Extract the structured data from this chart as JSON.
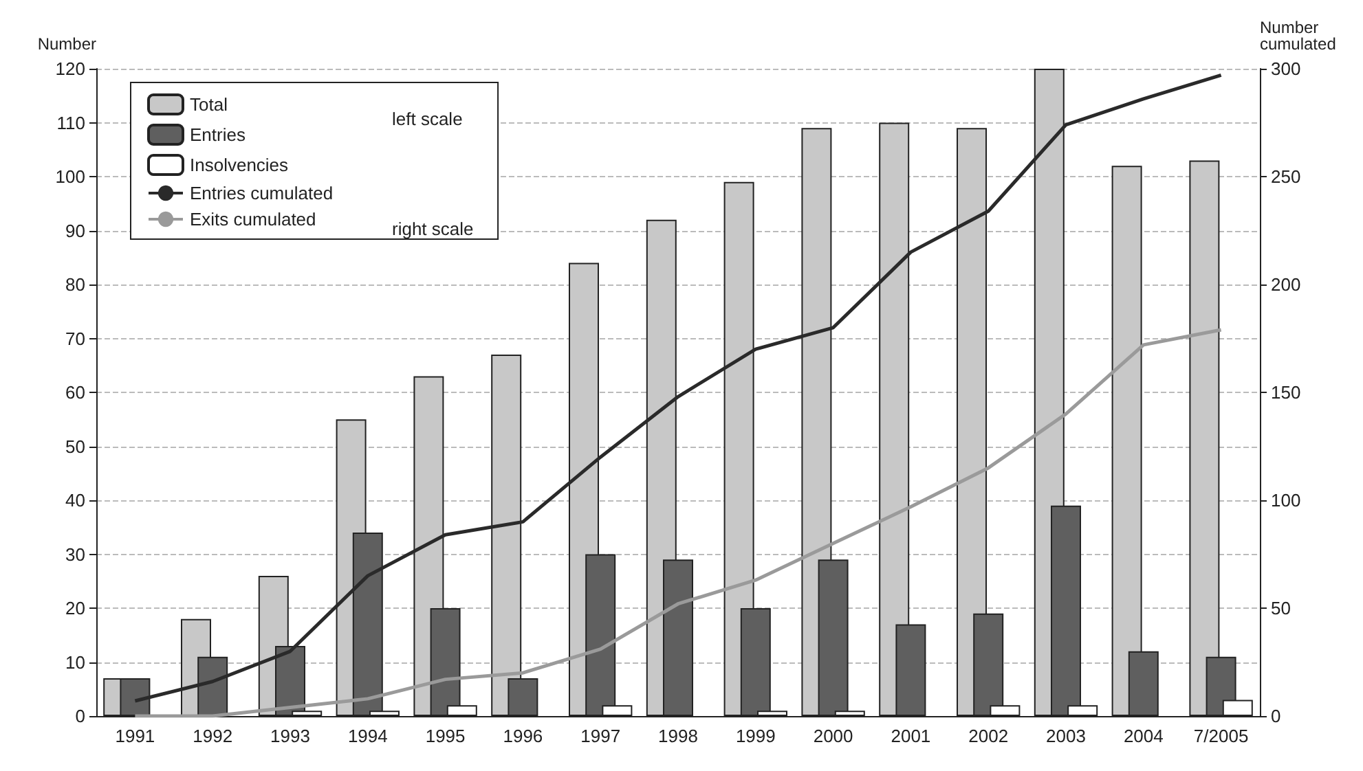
{
  "chart_data": {
    "type": "bar",
    "ylabel": "Number",
    "y2label": "Number\ncumulated",
    "categories": [
      "1991",
      "1992",
      "1993",
      "1994",
      "1995",
      "1996",
      "1997",
      "1998",
      "1999",
      "2000",
      "2001",
      "2002",
      "2003",
      "2004",
      "7/2005"
    ],
    "series": [
      {
        "name": "Total",
        "color": "#c8c8c8",
        "values": [
          7,
          18,
          26,
          55,
          63,
          67,
          84,
          92,
          99,
          109,
          110,
          109,
          120,
          102,
          103
        ]
      },
      {
        "name": "Entries",
        "color": "#5f5f5f",
        "values": [
          7,
          11,
          13,
          34,
          20,
          7,
          30,
          29,
          20,
          29,
          17,
          19,
          39,
          12,
          11
        ]
      },
      {
        "name": "Insolvencies",
        "color": "#ffffff",
        "values": [
          0,
          0,
          1,
          1,
          2,
          0,
          2,
          0,
          1,
          1,
          0,
          2,
          2,
          0,
          3
        ]
      },
      {
        "name": "Entries cumulated",
        "type": "line",
        "axis": "y2",
        "color": "#2a2a2a",
        "values": [
          7,
          16,
          30,
          65,
          84,
          90,
          120,
          148,
          170,
          180,
          215,
          234,
          274,
          286,
          297
        ]
      },
      {
        "name": "Exits cumulated",
        "type": "line",
        "axis": "y2",
        "color": "#9a9a9a",
        "values": [
          0,
          0,
          4,
          8,
          17,
          20,
          31,
          52,
          63,
          80,
          97,
          115,
          140,
          172,
          179
        ]
      }
    ],
    "ylim": [
      0,
      120
    ],
    "yticks": [
      0,
      10,
      20,
      30,
      40,
      50,
      60,
      70,
      80,
      90,
      100,
      110,
      120
    ],
    "y2lim": [
      0,
      300
    ],
    "y2ticks": [
      0,
      50,
      100,
      150,
      200,
      250,
      300
    ],
    "grid": "y",
    "legend": "top left",
    "marker": "none",
    "annotations": [
      "left scale",
      "right scale"
    ]
  }
}
